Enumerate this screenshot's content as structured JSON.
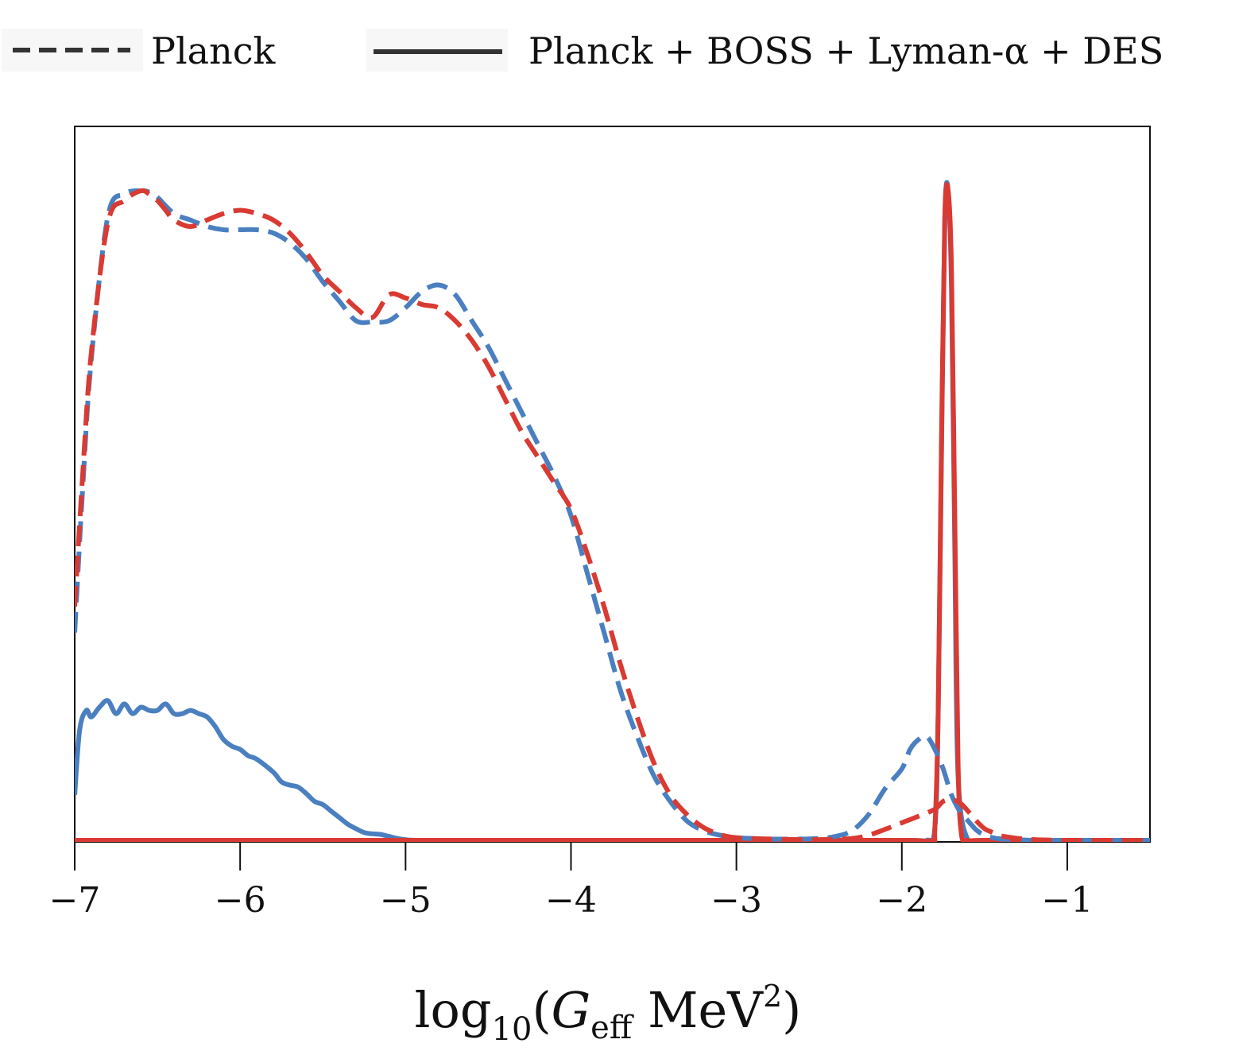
{
  "chart_data": {
    "type": "line",
    "title": "",
    "xlabel": "log10(G_eff MeV^2)",
    "xlabel_parts": {
      "base": "log",
      "sub": "10",
      "open": "(",
      "var": "G",
      "var_sub": "eff",
      "unit": " MeV",
      "unit_sup": "2",
      "close": ")"
    },
    "ylabel": "",
    "xlim": [
      -7,
      -0.5
    ],
    "ylim": [
      0,
      1.0
    ],
    "x_ticks": [
      -7,
      -6,
      -5,
      -4,
      -3,
      -2,
      -1
    ],
    "x_tick_labels": [
      "−7",
      "−6",
      "−5",
      "−4",
      "−3",
      "−2",
      "−1"
    ],
    "y_ticks_visible": false,
    "legend": {
      "placement": "top",
      "entries": [
        {
          "label": "Planck",
          "style": "dashed",
          "color": "#333333"
        },
        {
          "label": "Planck + BOSS + Lyman-α + DES",
          "style": "solid",
          "color": "#333333"
        }
      ]
    },
    "series": [
      {
        "name": "Planck (blue)",
        "dataset": "Planck",
        "style": "dashed",
        "color": "#4a7fc0",
        "x": [
          -7.0,
          -6.95,
          -6.9,
          -6.8,
          -6.7,
          -6.6,
          -6.55,
          -6.5,
          -6.4,
          -6.3,
          -6.2,
          -6.1,
          -6.0,
          -5.9,
          -5.8,
          -5.7,
          -5.6,
          -5.5,
          -5.4,
          -5.3,
          -5.2,
          -5.1,
          -5.0,
          -4.9,
          -4.8,
          -4.7,
          -4.6,
          -4.5,
          -4.4,
          -4.3,
          -4.2,
          -4.1,
          -4.0,
          -3.9,
          -3.8,
          -3.7,
          -3.6,
          -3.5,
          -3.4,
          -3.3,
          -3.2,
          -3.1,
          -3.0,
          -2.8,
          -2.6,
          -2.5,
          -2.4,
          -2.3,
          -2.2,
          -2.1,
          -2.0,
          -1.95,
          -1.9,
          -1.85,
          -1.8,
          -1.75,
          -1.7,
          -1.65,
          -1.6,
          -1.55,
          -1.5,
          -1.45,
          -1.4,
          -1.3,
          -1.2,
          -1.0,
          -0.8,
          -0.5
        ],
        "y": [
          0.32,
          0.55,
          0.74,
          0.96,
          0.995,
          1.0,
          0.998,
          0.99,
          0.965,
          0.955,
          0.945,
          0.94,
          0.94,
          0.94,
          0.935,
          0.92,
          0.895,
          0.86,
          0.83,
          0.8,
          0.798,
          0.8,
          0.82,
          0.845,
          0.855,
          0.84,
          0.8,
          0.76,
          0.71,
          0.66,
          0.61,
          0.56,
          0.5,
          0.41,
          0.32,
          0.23,
          0.16,
          0.1,
          0.06,
          0.03,
          0.015,
          0.008,
          0.004,
          0.002,
          0.002,
          0.003,
          0.006,
          0.015,
          0.04,
          0.08,
          0.11,
          0.14,
          0.155,
          0.16,
          0.14,
          0.11,
          0.07,
          0.045,
          0.03,
          0.016,
          0.008,
          0.004,
          0.002,
          0.001,
          0.0,
          0.0,
          0.0,
          0.0
        ]
      },
      {
        "name": "Planck (red)",
        "dataset": "Planck",
        "style": "dashed",
        "color": "#d93a32",
        "x": [
          -7.0,
          -6.95,
          -6.9,
          -6.8,
          -6.7,
          -6.6,
          -6.55,
          -6.5,
          -6.45,
          -6.4,
          -6.3,
          -6.2,
          -6.1,
          -6.0,
          -5.9,
          -5.8,
          -5.7,
          -5.6,
          -5.5,
          -5.4,
          -5.3,
          -5.2,
          -5.1,
          -5.0,
          -4.9,
          -4.8,
          -4.7,
          -4.6,
          -4.5,
          -4.4,
          -4.3,
          -4.2,
          -4.1,
          -4.0,
          -3.9,
          -3.8,
          -3.7,
          -3.6,
          -3.5,
          -3.4,
          -3.3,
          -3.2,
          -3.1,
          -3.0,
          -2.8,
          -2.5,
          -2.3,
          -2.2,
          -2.1,
          -2.0,
          -1.9,
          -1.8,
          -1.75,
          -1.7,
          -1.65,
          -1.6,
          -1.55,
          -1.5,
          -1.45,
          -1.4,
          -1.3,
          -1.2,
          -1.0,
          -0.5
        ],
        "y": [
          0.36,
          0.57,
          0.75,
          0.95,
          0.985,
          1.0,
          0.995,
          0.985,
          0.97,
          0.955,
          0.945,
          0.955,
          0.965,
          0.97,
          0.965,
          0.955,
          0.935,
          0.905,
          0.87,
          0.845,
          0.82,
          0.805,
          0.84,
          0.835,
          0.825,
          0.82,
          0.8,
          0.77,
          0.73,
          0.68,
          0.63,
          0.59,
          0.55,
          0.51,
          0.44,
          0.36,
          0.27,
          0.19,
          0.12,
          0.07,
          0.04,
          0.02,
          0.009,
          0.004,
          0.002,
          0.001,
          0.003,
          0.008,
          0.017,
          0.027,
          0.037,
          0.048,
          0.06,
          0.062,
          0.058,
          0.045,
          0.03,
          0.018,
          0.012,
          0.007,
          0.003,
          0.001,
          0.0,
          0.0
        ]
      },
      {
        "name": "Planck + BOSS + Lyman-α + DES (blue)",
        "dataset": "Planck + BOSS + Lyman-α + DES",
        "style": "solid",
        "color": "#4a7fc0",
        "x": [
          -7.0,
          -6.97,
          -6.93,
          -6.9,
          -6.85,
          -6.8,
          -6.75,
          -6.7,
          -6.65,
          -6.6,
          -6.55,
          -6.5,
          -6.45,
          -6.4,
          -6.35,
          -6.3,
          -6.25,
          -6.2,
          -6.15,
          -6.1,
          -6.05,
          -6.0,
          -5.95,
          -5.9,
          -5.8,
          -5.75,
          -5.7,
          -5.65,
          -5.6,
          -5.55,
          -5.5,
          -5.45,
          -5.4,
          -5.35,
          -5.3,
          -5.25,
          -5.2,
          -5.15,
          -5.1,
          -5.05,
          -5.0,
          -4.9,
          -4.5,
          -4.0,
          -3.0,
          -2.0,
          -1.85,
          -1.8,
          -1.78,
          -1.76,
          -1.74,
          -1.72,
          -1.7,
          -1.68,
          -1.66,
          -1.6,
          -1.5,
          -1.0,
          -0.5
        ],
        "y": [
          0.07,
          0.17,
          0.2,
          0.19,
          0.205,
          0.215,
          0.195,
          0.21,
          0.195,
          0.205,
          0.2,
          0.2,
          0.21,
          0.195,
          0.195,
          0.2,
          0.195,
          0.19,
          0.175,
          0.155,
          0.145,
          0.14,
          0.13,
          0.125,
          0.105,
          0.09,
          0.085,
          0.082,
          0.072,
          0.06,
          0.055,
          0.045,
          0.035,
          0.025,
          0.018,
          0.012,
          0.01,
          0.009,
          0.006,
          0.003,
          0.001,
          0.0,
          0.0,
          0.0,
          0.0,
          0.0,
          0.0,
          0.02,
          0.2,
          0.6,
          0.96,
          1.0,
          0.85,
          0.45,
          0.1,
          0.0,
          0.0,
          0.0,
          0.0
        ]
      },
      {
        "name": "Planck + BOSS + Lyman-α + DES (red)",
        "dataset": "Planck + BOSS + Lyman-α + DES",
        "style": "solid",
        "color": "#d93a32",
        "x": [
          -7.0,
          -6.0,
          -5.0,
          -4.0,
          -3.0,
          -2.0,
          -1.82,
          -1.8,
          -1.78,
          -1.76,
          -1.74,
          -1.72,
          -1.7,
          -1.68,
          -1.66,
          -1.64,
          -1.6,
          -1.5,
          -1.0,
          -0.5
        ],
        "y": [
          0.0,
          0.0,
          0.0,
          0.0,
          0.0,
          0.0,
          0.0,
          0.02,
          0.2,
          0.62,
          0.96,
          1.0,
          0.88,
          0.5,
          0.12,
          0.01,
          0.0,
          0.0,
          0.0,
          0.0
        ]
      }
    ]
  }
}
